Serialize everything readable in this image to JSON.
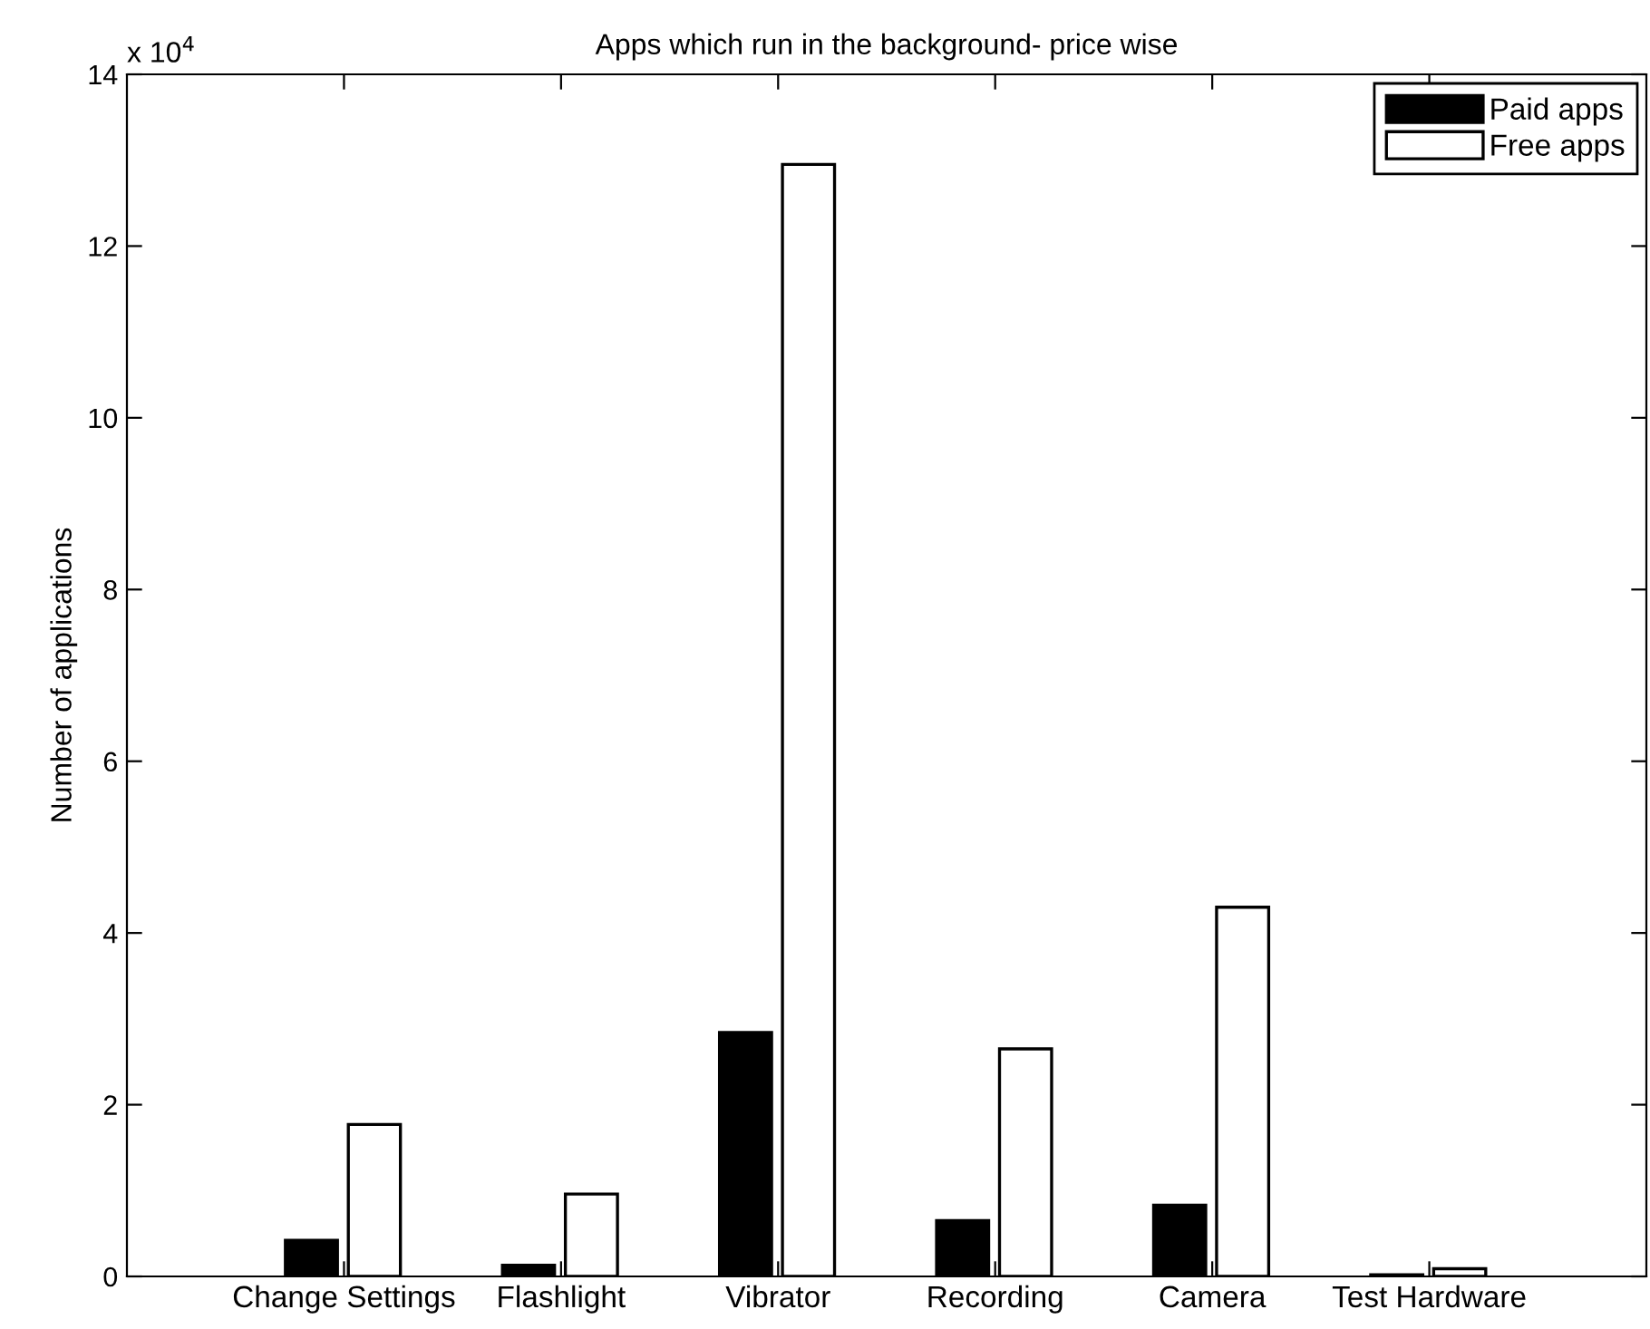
{
  "chart_data": {
    "type": "bar",
    "title": "Apps which run in the background- price wise",
    "ylabel": "Number of applications",
    "categories": [
      "Change Settings",
      "Flashlight",
      "Vibrator",
      "Recording",
      "Camera",
      "Test Hardware"
    ],
    "series": [
      {
        "name": "Paid apps",
        "color": "#000000",
        "values": [
          0.42,
          0.13,
          2.84,
          0.65,
          0.83,
          0.02
        ]
      },
      {
        "name": "Free apps",
        "color": "#ffffff",
        "values": [
          1.77,
          0.96,
          12.95,
          2.65,
          4.3,
          0.09
        ]
      }
    ],
    "ylim": [
      0,
      14
    ],
    "yticks": [
      0,
      2,
      4,
      6,
      8,
      10,
      12,
      14
    ],
    "annotations": [
      "x 10$^{4}$"
    ],
    "legend": "top right",
    "grid": false
  }
}
